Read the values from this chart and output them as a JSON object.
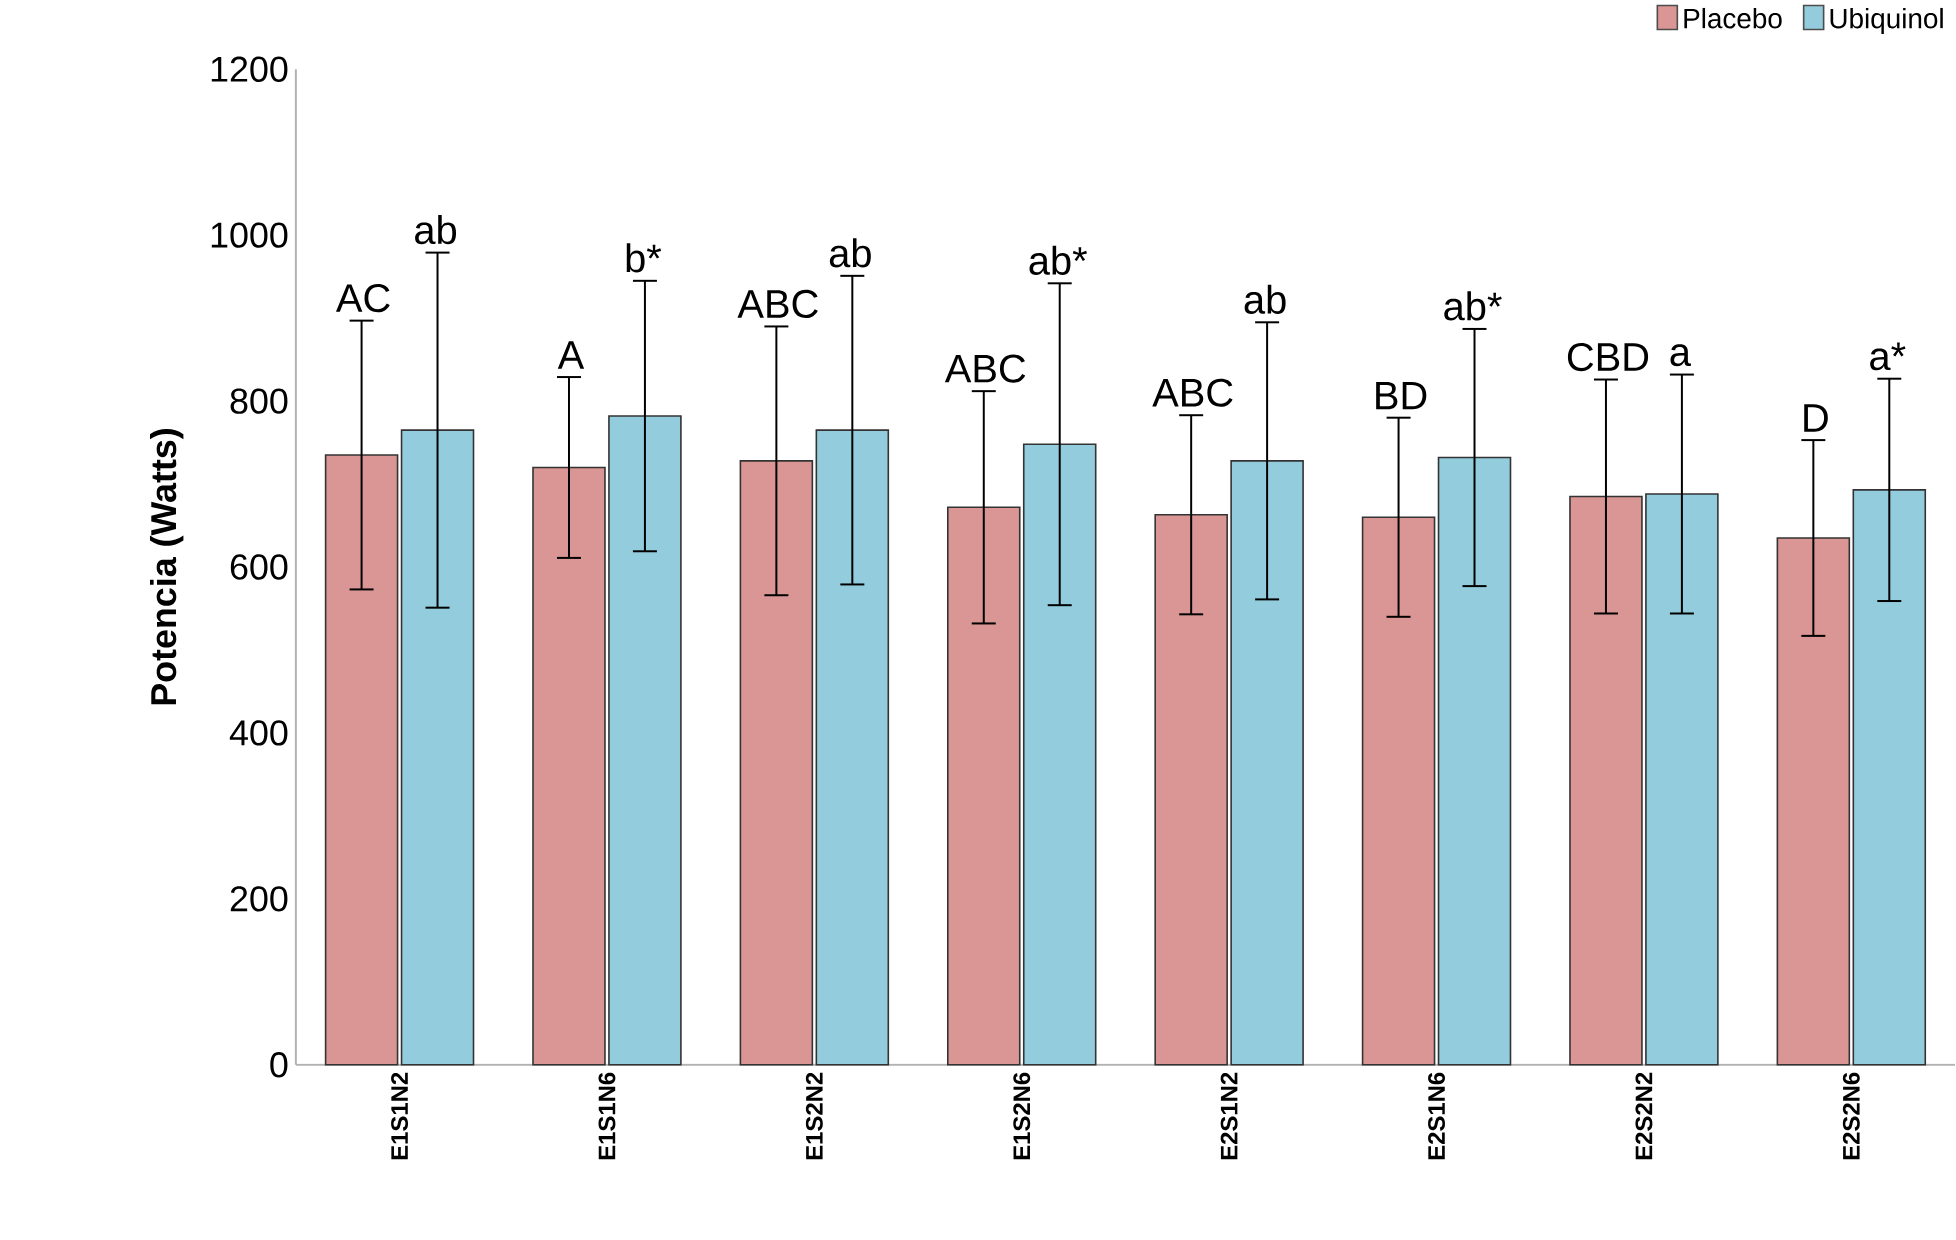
{
  "chart_data": {
    "type": "bar",
    "ylabel": "Potencia (Watts)",
    "categories": [
      "E1S1N2",
      "E1S1N6",
      "E1S2N2",
      "E1S2N6",
      "E2S1N2",
      "E2S1N6",
      "E2S2N2",
      "E2S2N6"
    ],
    "series": [
      {
        "name": "Placebo",
        "color": "#d99694",
        "values": [
          735,
          720,
          728,
          672,
          663,
          660,
          685,
          635
        ],
        "errors": [
          162,
          109,
          162,
          140,
          120,
          120,
          141,
          118
        ]
      },
      {
        "name": "Ubiquinol",
        "color": "#93cddd",
        "values": [
          765,
          782,
          765,
          748,
          728,
          732,
          688,
          693
        ],
        "errors": [
          214,
          163,
          186,
          194,
          167,
          155,
          144,
          134
        ]
      }
    ],
    "ylim": [
      0,
      1200
    ],
    "yticks": [
      0,
      200,
      400,
      600,
      800,
      1000,
      1200
    ],
    "legend": "top right",
    "grid": false,
    "annotations": [
      "AC",
      "ab",
      "A",
      "b*",
      "ABC",
      "ab",
      "ABC",
      "ab*",
      "ABC",
      "ab",
      "BD",
      "ab*",
      "CBD",
      "a",
      "D",
      "a*"
    ]
  }
}
